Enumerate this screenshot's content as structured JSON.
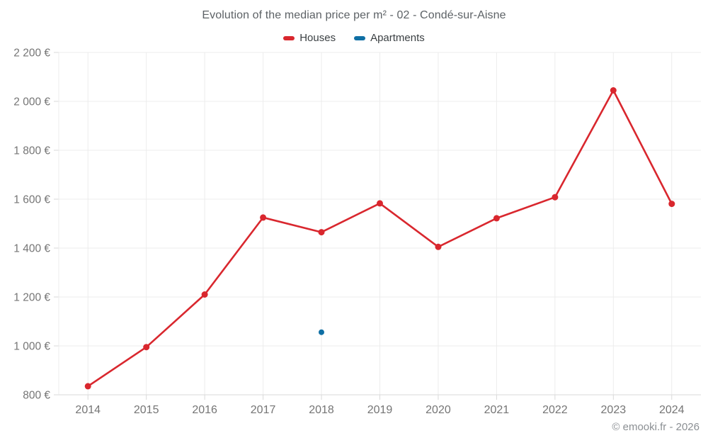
{
  "chart_data": {
    "type": "line",
    "title": "Evolution of the median price per m² - 02 - Condé-sur-Aisne",
    "xlabel": "",
    "ylabel": "",
    "categories": [
      "2014",
      "2015",
      "2016",
      "2017",
      "2018",
      "2019",
      "2020",
      "2021",
      "2022",
      "2023",
      "2024"
    ],
    "series": [
      {
        "name": "Houses",
        "color": "#d9272e",
        "point_radius": 4.5,
        "values": [
          835,
          995,
          1210,
          1525,
          1465,
          1583,
          1405,
          1522,
          1608,
          2045,
          1581
        ]
      },
      {
        "name": "Apartments",
        "color": "#0f6fa4",
        "point_radius": 4,
        "values": [
          null,
          null,
          null,
          null,
          1056,
          null,
          null,
          null,
          null,
          null,
          null
        ]
      }
    ],
    "ylim": [
      800,
      2200
    ],
    "y_ticks": [
      {
        "value": 800,
        "label": "800 €"
      },
      {
        "value": 1000,
        "label": "1 000 €"
      },
      {
        "value": 1200,
        "label": "1 200 €"
      },
      {
        "value": 1400,
        "label": "1 400 €"
      },
      {
        "value": 1600,
        "label": "1 600 €"
      },
      {
        "value": 1800,
        "label": "1 800 €"
      },
      {
        "value": 2000,
        "label": "2 000 €"
      },
      {
        "value": 2200,
        "label": "2 200 €"
      }
    ],
    "grid": true,
    "legend_position": "top"
  },
  "footer": {
    "copyright": "© emooki.fr - 2026"
  },
  "colors": {
    "background": "#ffffff",
    "grid": "#ececec",
    "tick": "#d9d9d9",
    "axis_line": "#d9d9d9",
    "axis_label": "#757575",
    "title_text": "#5d6266",
    "legend_text": "#3b4043",
    "footer_text": "#8b8f93"
  }
}
